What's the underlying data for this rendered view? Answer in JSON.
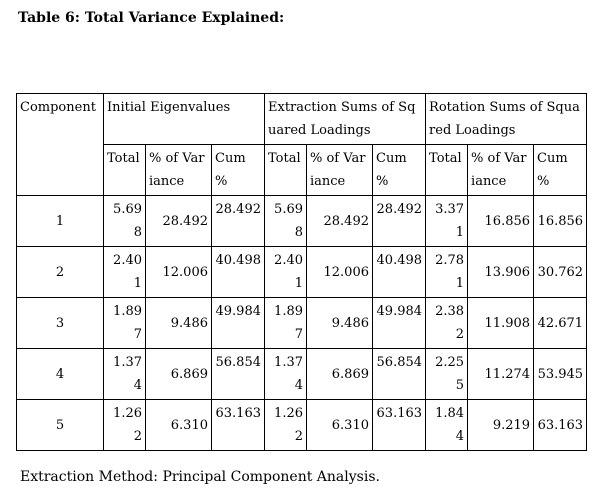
{
  "caption": "Table 6: Total Variance Explained:",
  "headers": {
    "component": "Component",
    "initial": "Initial Eigenvalues",
    "extraction": "Extraction Sums of Squared Loadings",
    "rotation": "Rotation Sums of Squared Loadings",
    "total": "Total",
    "pct_variance": "% of Variance",
    "cum_pct": "Cum %"
  },
  "rows": [
    {
      "component": "1",
      "init_total": "5.698",
      "init_pct": "28.492",
      "init_cum": "28.492",
      "ext_total": "5.698",
      "ext_pct": "28.492",
      "ext_cum": "28.492",
      "rot_total": "3.371",
      "rot_pct": "16.856",
      "rot_cum": "16.856"
    },
    {
      "component": "2",
      "init_total": "2.401",
      "init_pct": "12.006",
      "init_cum": "40.498",
      "ext_total": "2.401",
      "ext_pct": "12.006",
      "ext_cum": "40.498",
      "rot_total": "2.781",
      "rot_pct": "13.906",
      "rot_cum": "30.762"
    },
    {
      "component": "3",
      "init_total": "1.897",
      "init_pct": "9.486",
      "init_cum": "49.984",
      "ext_total": "1.897",
      "ext_pct": "9.486",
      "ext_cum": "49.984",
      "rot_total": "2.382",
      "rot_pct": "11.908",
      "rot_cum": "42.671"
    },
    {
      "component": "4",
      "init_total": "1.374",
      "init_pct": "6.869",
      "init_cum": "56.854",
      "ext_total": "1.374",
      "ext_pct": "6.869",
      "ext_cum": "56.854",
      "rot_total": "2.255",
      "rot_pct": "11.274",
      "rot_cum": "53.945"
    },
    {
      "component": "5",
      "init_total": "1.262",
      "init_pct": "6.310",
      "init_cum": "63.163",
      "ext_total": "1.262",
      "ext_pct": "6.310",
      "ext_cum": "63.163",
      "rot_total": "1.844",
      "rot_pct": "9.219",
      "rot_cum": "63.163"
    }
  ],
  "footnote": "Extraction Method: Principal Component Analysis."
}
